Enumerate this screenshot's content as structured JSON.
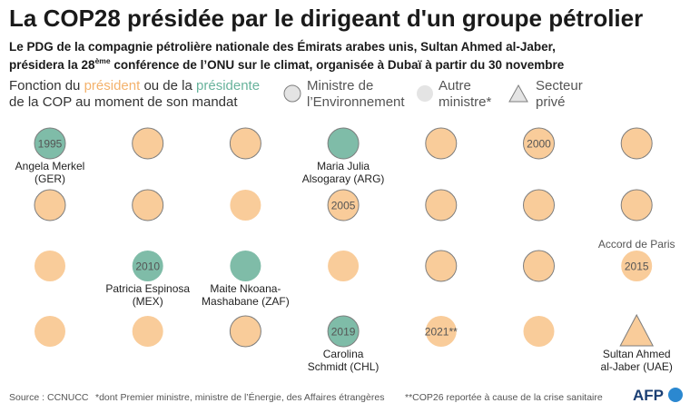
{
  "title": "La COP28 présidée par le dirigeant d'un groupe pétrolier",
  "subtitle": {
    "line1": "Le PDG de la compagnie pétrolière nationale des Émirats arabes unis, Sultan Ahmed al-Jaber,",
    "line2_start": "présidera la 28",
    "line2_sup": "ème",
    "line2_end": " conférence de l’ONU sur le climat, organisée à Dubaï à partir du 30 novembre"
  },
  "legend": {
    "line1_start": "Fonction du",
    "president_word": "président",
    "line1_middle": "ou de la",
    "presidente_word": "présidente",
    "line2": "de la COP au moment de son mandat",
    "items": [
      {
        "symbol": "circle-outline-icon",
        "lines": [
          "Ministre de",
          "l’Environnement"
        ]
      },
      {
        "symbol": "circle-filled-icon",
        "lines": [
          "Autre",
          "ministre*"
        ]
      },
      {
        "symbol": "triangle-icon",
        "lines": [
          "Secteur",
          "privé"
        ]
      }
    ]
  },
  "colors": {
    "president_fill": "#f9cc9a",
    "presidente_fill": "#7fbca8",
    "president_text": "#f4b26c",
    "presidente_text": "#68b39c",
    "marker_outline": "#7d7d7d",
    "legend_symbol_fill": "#e4e4e4",
    "year_text": "#555555",
    "name_text": "#222222",
    "note_text": "#555555",
    "logo_text": "#1b3f74",
    "logo_dot": "#2b88d0"
  },
  "chart_data": {
    "type": "heatmap",
    "cells": [
      {
        "year": "1995",
        "gender": "F",
        "role": "env",
        "name": [
          "Angela Merkel",
          "(GER)"
        ]
      },
      {
        "gender": "M",
        "role": "env"
      },
      {
        "gender": "M",
        "role": "env"
      },
      {
        "gender": "F",
        "role": "env",
        "name": [
          "Maria Julia",
          "Alsogaray (ARG)"
        ]
      },
      {
        "gender": "M",
        "role": "env"
      },
      {
        "year": "2000",
        "gender": "M",
        "role": "env"
      },
      {
        "gender": "M",
        "role": "env"
      },
      {
        "gender": "M",
        "role": "env"
      },
      {
        "gender": "M",
        "role": "env"
      },
      {
        "gender": "M",
        "role": "other"
      },
      {
        "year": "2005",
        "gender": "M",
        "role": "env"
      },
      {
        "gender": "M",
        "role": "env"
      },
      {
        "gender": "M",
        "role": "env"
      },
      {
        "gender": "M",
        "role": "env"
      },
      {
        "gender": "M",
        "role": "other"
      },
      {
        "year": "2010",
        "gender": "F",
        "role": "other",
        "name": [
          "Patricia Espinosa",
          "(MEX)"
        ]
      },
      {
        "gender": "F",
        "role": "other",
        "name": [
          "Maite Nkoana-",
          "Mashabane (ZAF)"
        ]
      },
      {
        "gender": "M",
        "role": "other"
      },
      {
        "gender": "M",
        "role": "env"
      },
      {
        "gender": "M",
        "role": "env"
      },
      {
        "year": "2015",
        "gender": "M",
        "role": "other",
        "note": "Accord de Paris"
      },
      {
        "gender": "M",
        "role": "other"
      },
      {
        "gender": "M",
        "role": "other"
      },
      {
        "gender": "M",
        "role": "env"
      },
      {
        "year": "2019",
        "gender": "F",
        "role": "env",
        "name": [
          "Carolina",
          "Schmidt (CHL)"
        ]
      },
      {
        "year": "2021**",
        "gender": "M",
        "role": "other"
      },
      {
        "gender": "M",
        "role": "other"
      },
      {
        "gender": "M",
        "role": "private",
        "name": [
          "Sultan Ahmed",
          "al-Jaber (UAE)"
        ]
      }
    ]
  },
  "footer": {
    "source": "Source : CCNUCC",
    "note1": "*dont Premier ministre, ministre de l’Énergie, des Affaires étrangères",
    "note2": "**COP26 reportée à cause de la crise sanitaire",
    "logo": "AFP"
  }
}
